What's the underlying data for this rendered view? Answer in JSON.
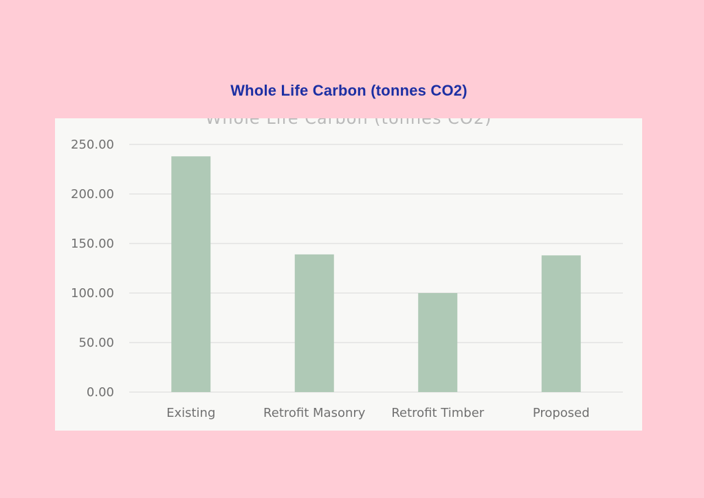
{
  "chart_data": {
    "type": "bar",
    "title": "Whole Life Carbon (tonnes CO2)",
    "categories": [
      "Existing",
      "Retrofit Masonry",
      "Retrofit Timber",
      "Proposed"
    ],
    "values": [
      238,
      139,
      100,
      138
    ],
    "ylim": [
      0,
      250
    ],
    "yticks": [
      "0.00",
      "50.00",
      "100.00",
      "150.00",
      "200.00",
      "250.00"
    ],
    "ytick_values": [
      0,
      50,
      100,
      150,
      200,
      250
    ],
    "grid": true,
    "bar_color": "#afc9b6",
    "grid_color": "#e2e2e2",
    "title_color": "#1c2fa3"
  }
}
